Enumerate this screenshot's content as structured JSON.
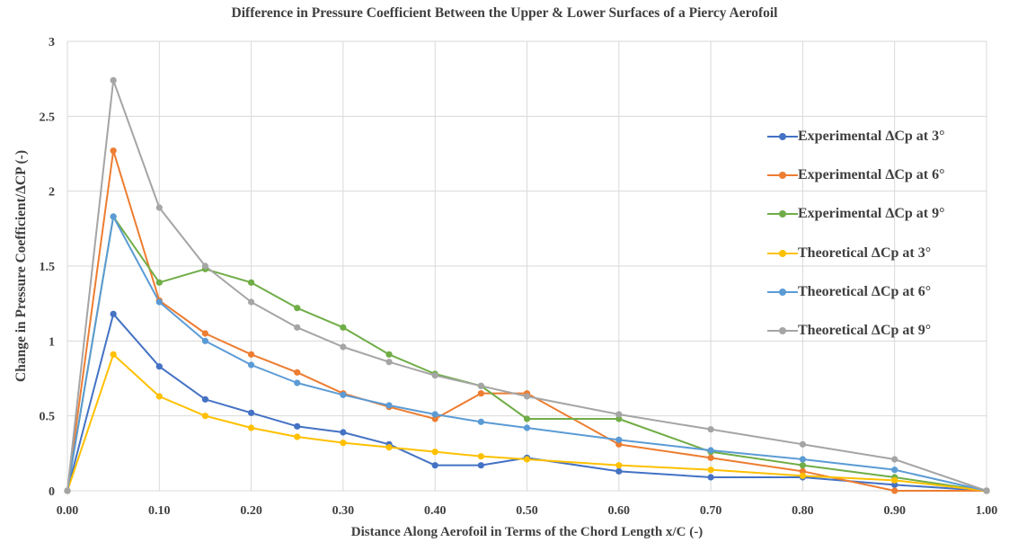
{
  "chart_data": {
    "type": "line",
    "title": "Difference in Pressure Coefficient Between the Upper & Lower Surfaces of a Piercy Aerofoil",
    "xlabel": "Distance Along Aerofoil in Terms of the Chord Length x/C (-)",
    "ylabel": "Change in Pressure Coefficient/ΔCP (-)",
    "xlim": [
      0,
      1
    ],
    "ylim": [
      0,
      3
    ],
    "x_ticks": [
      "0.00",
      "0.10",
      "0.20",
      "0.30",
      "0.40",
      "0.50",
      "0.60",
      "0.70",
      "0.80",
      "0.90",
      "1.00"
    ],
    "y_ticks": [
      "0",
      "0.5",
      "1",
      "1.5",
      "2",
      "2.5",
      "3"
    ],
    "grid": true,
    "legend_position": "right",
    "series": [
      {
        "name": "Experimental ΔCp at 3°",
        "color": "#4472c4",
        "x": [
          0,
          0.05,
          0.1,
          0.15,
          0.2,
          0.25,
          0.3,
          0.35,
          0.4,
          0.45,
          0.5,
          0.6,
          0.7,
          0.8,
          0.9,
          1.0
        ],
        "values": [
          0,
          1.18,
          0.83,
          0.61,
          0.52,
          0.43,
          0.39,
          0.31,
          0.17,
          0.17,
          0.22,
          0.13,
          0.09,
          0.09,
          0.04,
          0
        ]
      },
      {
        "name": "Experimental ΔCp at 6°",
        "color": "#ed7d31",
        "x": [
          0,
          0.05,
          0.1,
          0.15,
          0.2,
          0.25,
          0.3,
          0.35,
          0.4,
          0.45,
          0.5,
          0.6,
          0.7,
          0.8,
          0.9,
          1.0
        ],
        "values": [
          0,
          2.27,
          1.27,
          1.05,
          0.91,
          0.79,
          0.65,
          0.56,
          0.48,
          0.65,
          0.65,
          0.31,
          0.22,
          0.13,
          0.0,
          0
        ]
      },
      {
        "name": "Experimental ΔCp at 9°",
        "color": "#70ad47",
        "x": [
          0,
          0.05,
          0.1,
          0.15,
          0.2,
          0.25,
          0.3,
          0.35,
          0.4,
          0.45,
          0.5,
          0.6,
          0.7,
          0.8,
          0.9,
          1.0
        ],
        "values": [
          0,
          1.83,
          1.39,
          1.48,
          1.39,
          1.22,
          1.09,
          0.91,
          0.78,
          0.7,
          0.48,
          0.48,
          0.26,
          0.17,
          0.09,
          0
        ]
      },
      {
        "name": "Theoretical ΔCp at 3°",
        "color": "#ffc000",
        "x": [
          0,
          0.05,
          0.1,
          0.15,
          0.2,
          0.25,
          0.3,
          0.35,
          0.4,
          0.45,
          0.5,
          0.6,
          0.7,
          0.8,
          0.9,
          1.0
        ],
        "values": [
          0,
          0.91,
          0.63,
          0.5,
          0.42,
          0.36,
          0.32,
          0.29,
          0.26,
          0.23,
          0.21,
          0.17,
          0.14,
          0.1,
          0.07,
          0
        ]
      },
      {
        "name": "Theoretical ΔCp at 6°",
        "color": "#5b9bd5",
        "x": [
          0,
          0.05,
          0.1,
          0.15,
          0.2,
          0.25,
          0.3,
          0.35,
          0.4,
          0.45,
          0.5,
          0.6,
          0.7,
          0.8,
          0.9,
          1.0
        ],
        "values": [
          0,
          1.83,
          1.26,
          1.0,
          0.84,
          0.72,
          0.64,
          0.57,
          0.51,
          0.46,
          0.42,
          0.34,
          0.27,
          0.21,
          0.14,
          0
        ]
      },
      {
        "name": "Theoretical ΔCp at 9°",
        "color": "#a5a5a5",
        "x": [
          0,
          0.05,
          0.1,
          0.15,
          0.2,
          0.25,
          0.3,
          0.35,
          0.4,
          0.45,
          0.5,
          0.6,
          0.7,
          0.8,
          0.9,
          1.0
        ],
        "values": [
          0,
          2.74,
          1.89,
          1.5,
          1.26,
          1.09,
          0.96,
          0.86,
          0.77,
          0.7,
          0.63,
          0.51,
          0.41,
          0.31,
          0.21,
          0
        ]
      }
    ]
  }
}
